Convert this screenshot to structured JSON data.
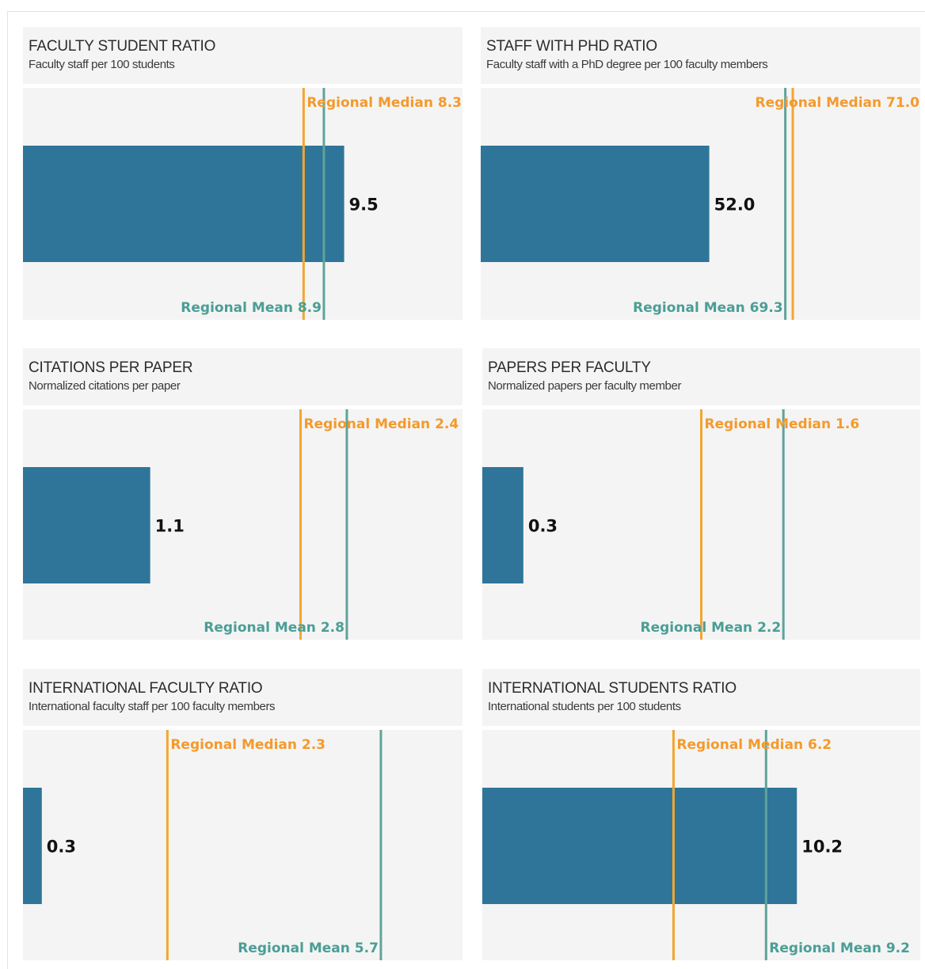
{
  "colors": {
    "bar": "#2f7599",
    "median": "#f2a631",
    "median_label": "#f39a2c",
    "mean": "#5fa39b",
    "mean_label": "#4a9e96",
    "panel_bg": "#f4f4f4"
  },
  "chart_data": [
    {
      "type": "bar",
      "orientation": "horizontal",
      "title": "FACULTY STUDENT RATIO",
      "subtitle": "Faculty staff per 100 students",
      "value": 9.5,
      "value_label": "9.5",
      "regional_median": 8.3,
      "regional_median_label": "Regional Median 8.3",
      "regional_mean": 8.9,
      "regional_mean_label": "Regional Mean 8.9",
      "xlim": [
        0,
        13.0
      ]
    },
    {
      "type": "bar",
      "orientation": "horizontal",
      "title": "STAFF WITH PHD RATIO",
      "subtitle": "Faculty staff with a PhD degree per 100 faculty members",
      "value": 52.0,
      "value_label": "52.0",
      "regional_median": 71.0,
      "regional_median_label": "Regional Median 71.0",
      "regional_mean": 69.3,
      "regional_mean_label": "Regional Mean 69.3",
      "xlim": [
        0,
        100
      ]
    },
    {
      "type": "bar",
      "orientation": "horizontal",
      "title": "CITATIONS PER PAPER",
      "subtitle": "Normalized citations per paper",
      "value": 1.1,
      "value_label": "1.1",
      "regional_median": 2.4,
      "regional_median_label": "Regional Median 2.4",
      "regional_mean": 2.8,
      "regional_mean_label": "Regional Mean 2.8",
      "xlim": [
        0,
        3.8
      ]
    },
    {
      "type": "bar",
      "orientation": "horizontal",
      "title": "PAPERS PER FACULTY",
      "subtitle": "Normalized papers per faculty member",
      "value": 0.3,
      "value_label": "0.3",
      "regional_median": 1.6,
      "regional_median_label": "Regional Median 1.6",
      "regional_mean": 2.2,
      "regional_mean_label": "Regional Mean 2.2",
      "xlim": [
        0,
        3.2
      ]
    },
    {
      "type": "bar",
      "orientation": "horizontal",
      "title": "INTERNATIONAL FACULTY RATIO",
      "subtitle": "International faculty staff per 100 faculty members",
      "value": 0.3,
      "value_label": "0.3",
      "regional_median": 2.3,
      "regional_median_label": "Regional Median 2.3",
      "regional_mean": 5.7,
      "regional_mean_label": "Regional Mean 5.7",
      "xlim": [
        0,
        7.0
      ]
    },
    {
      "type": "bar",
      "orientation": "horizontal",
      "title": "INTERNATIONAL STUDENTS RATIO",
      "subtitle": "International students per 100 students",
      "value": 10.2,
      "value_label": "10.2",
      "regional_median": 6.2,
      "regional_median_label": "Regional Median 6.2",
      "regional_mean": 9.2,
      "regional_mean_label": "Regional Mean 9.2",
      "xlim": [
        0,
        14.2
      ]
    }
  ]
}
